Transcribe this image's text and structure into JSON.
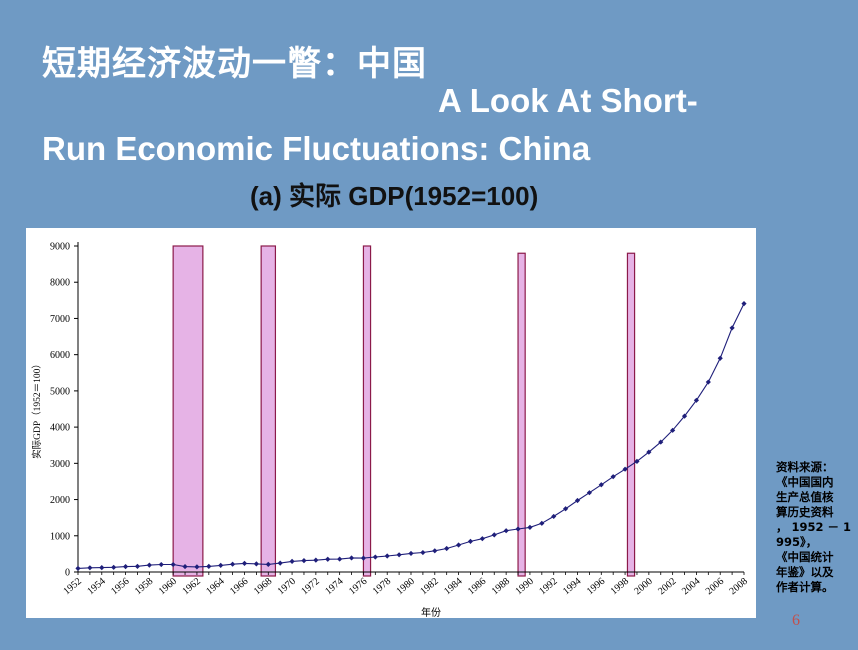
{
  "slide": {
    "title_cn": "短期经济波动一瞥：中国",
    "title_en_line1": "A Look At Short-",
    "title_en_line2": "Run Economic Fluctuations: China",
    "subtitle": "(a) 实际 GDP(1952=100)",
    "source_lines": [
      "资料来源：",
      "《中国国内",
      "生产总值核",
      "算历史资料",
      "，  1952 － 1",
      "995》，",
      "《中国统计",
      "年鉴》以及",
      "作者计算。"
    ],
    "page_number": "6"
  },
  "colors": {
    "background": "#6f9ac4",
    "series": "#1f1f7a",
    "band_fill": "#e6b3e6",
    "band_stroke": "#8b1a4a"
  },
  "chart_data": {
    "type": "line",
    "title": "",
    "xlabel": "年份",
    "ylabel": "实际GDP（1952＝100）",
    "xlim": [
      1952,
      2008
    ],
    "ylim": [
      0,
      9000
    ],
    "yticks": [
      0,
      1000,
      2000,
      3000,
      4000,
      5000,
      6000,
      7000,
      8000,
      9000
    ],
    "xticks": [
      1952,
      1954,
      1956,
      1958,
      1960,
      1962,
      1964,
      1966,
      1968,
      1970,
      1972,
      1974,
      1976,
      1978,
      1980,
      1982,
      1984,
      1986,
      1988,
      1990,
      1992,
      1994,
      1996,
      1998,
      2000,
      2002,
      2004,
      2006,
      2008
    ],
    "grid": false,
    "series": [
      {
        "name": "",
        "x": [
          1952,
          1953,
          1954,
          1955,
          1956,
          1957,
          1958,
          1959,
          1960,
          1961,
          1962,
          1963,
          1964,
          1965,
          1966,
          1967,
          1968,
          1969,
          1970,
          1971,
          1972,
          1973,
          1974,
          1975,
          1976,
          1977,
          1978,
          1979,
          1980,
          1981,
          1982,
          1983,
          1984,
          1985,
          1986,
          1987,
          1988,
          1989,
          1990,
          1991,
          1992,
          1993,
          1994,
          1995,
          1996,
          1997,
          1998,
          1999,
          2000,
          2001,
          2002,
          2003,
          2004,
          2005,
          2006,
          2007,
          2008
        ],
        "values": [
          100,
          116,
          121,
          129,
          149,
          156,
          190,
          206,
          206,
          150,
          141,
          155,
          183,
          215,
          238,
          224,
          210,
          245,
          294,
          315,
          327,
          353,
          357,
          388,
          383,
          413,
          442,
          475,
          513,
          537,
          585,
          648,
          746,
          846,
          920,
          1025,
          1140,
          1187,
          1232,
          1344,
          1534,
          1746,
          1974,
          2189,
          2408,
          2632,
          2838,
          3055,
          3310,
          3587,
          3911,
          4304,
          4740,
          5244,
          5901,
          6738,
          7410
        ]
      }
    ],
    "bands": [
      {
        "from": 1960,
        "to": 1962.5,
        "top": 9000
      },
      {
        "from": 1967.4,
        "to": 1968.6,
        "top": 9000
      },
      {
        "from": 1976,
        "to": 1976.6,
        "top": 9000
      },
      {
        "from": 1989,
        "to": 1989.6,
        "top": 8800
      },
      {
        "from": 1998.2,
        "to": 1998.8,
        "top": 8800
      }
    ]
  }
}
